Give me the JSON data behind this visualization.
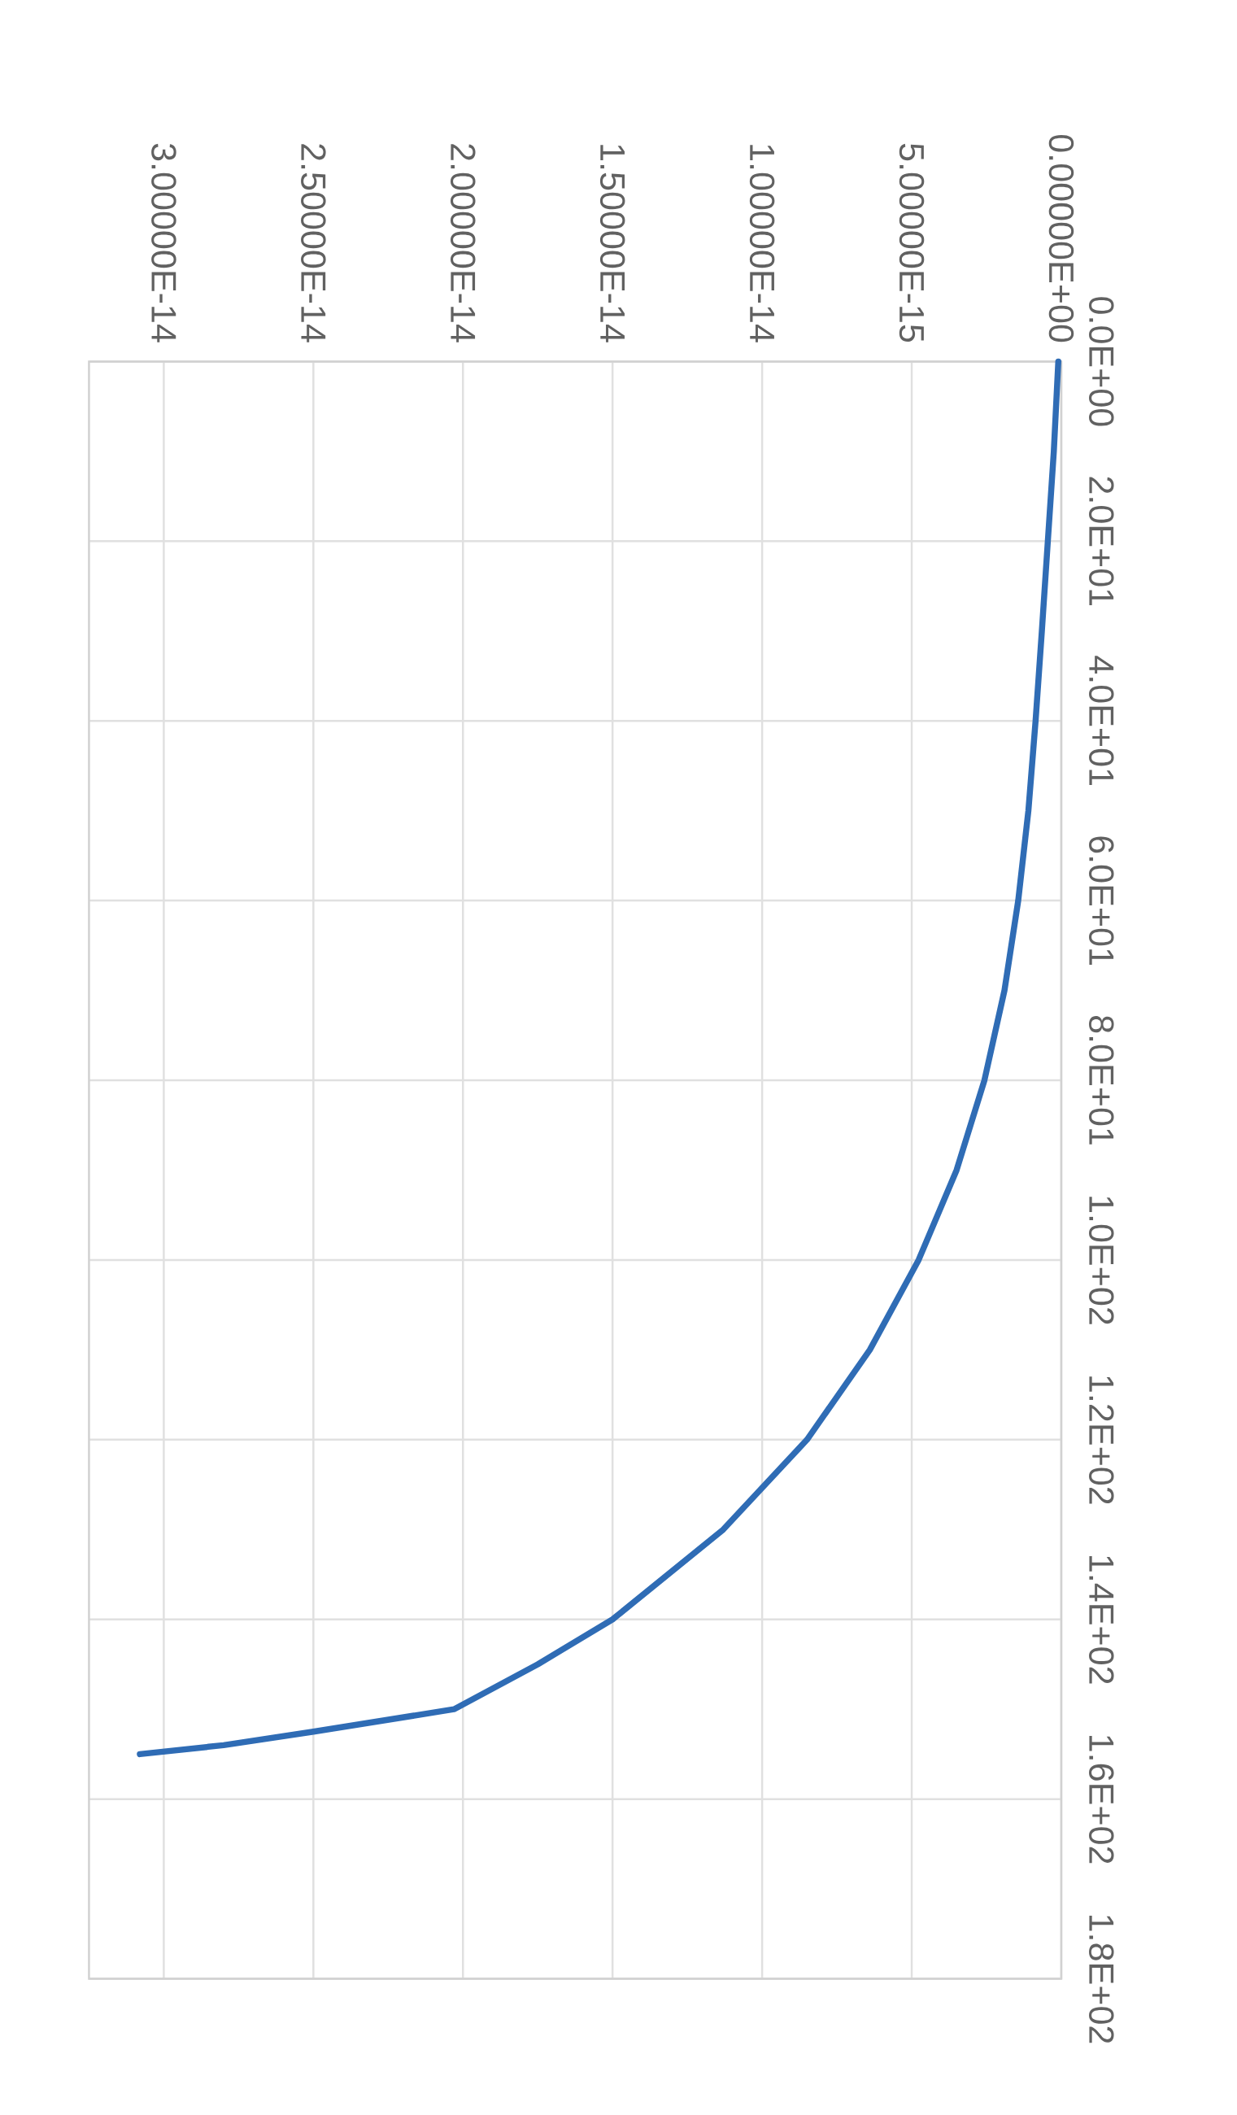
{
  "chart_data": {
    "type": "line",
    "x": [
      1e-16,
      2.5e-16,
      4.5e-16,
      6.5e-16,
      8.6e-16,
      1.1e-15,
      1.44e-15,
      1.9e-15,
      2.57e-15,
      3.5e-15,
      4.77e-15,
      6.4e-15,
      8.5e-15,
      1.13e-14,
      1.5e-14,
      1.75e-14,
      2.03e-14,
      2.5e-14,
      2.8e-14,
      3.08e-14
    ],
    "series": [
      {
        "color": "#2f6cb5",
        "values": [
          0,
          10,
          20,
          30,
          40,
          50,
          60,
          70,
          80,
          90,
          100,
          110,
          120,
          130,
          140,
          145,
          150,
          152.5,
          154,
          155
        ]
      }
    ],
    "xlim": [
      3.25e-14,
      0
    ],
    "xticks": [
      {
        "value": 0,
        "label": "0.00000E+00"
      },
      {
        "value": 5e-15,
        "label": "5.00000E-15"
      },
      {
        "value": 1e-14,
        "label": "1.00000E-14"
      },
      {
        "value": 1.5e-14,
        "label": "1.50000E-14"
      },
      {
        "value": 2e-14,
        "label": "2.00000E-14"
      },
      {
        "value": 2.5e-14,
        "label": "2.50000E-14"
      },
      {
        "value": 3e-14,
        "label": "3.00000E-14"
      }
    ],
    "ylim": [
      180,
      0
    ],
    "yticks": [
      {
        "value": 0,
        "label": "0.0E+00"
      },
      {
        "value": 20,
        "label": "2.0E+01"
      },
      {
        "value": 40,
        "label": "4.0E+01"
      },
      {
        "value": 60,
        "label": "6.0E+01"
      },
      {
        "value": 80,
        "label": "8.0E+01"
      },
      {
        "value": 100,
        "label": "1.0E+02"
      },
      {
        "value": 120,
        "label": "1.2E+02"
      },
      {
        "value": 140,
        "label": "1.4E+02"
      },
      {
        "value": 160,
        "label": "1.6E+02"
      },
      {
        "value": 180,
        "label": "1.8E+02"
      }
    ],
    "grid": true,
    "marker": "none"
  }
}
